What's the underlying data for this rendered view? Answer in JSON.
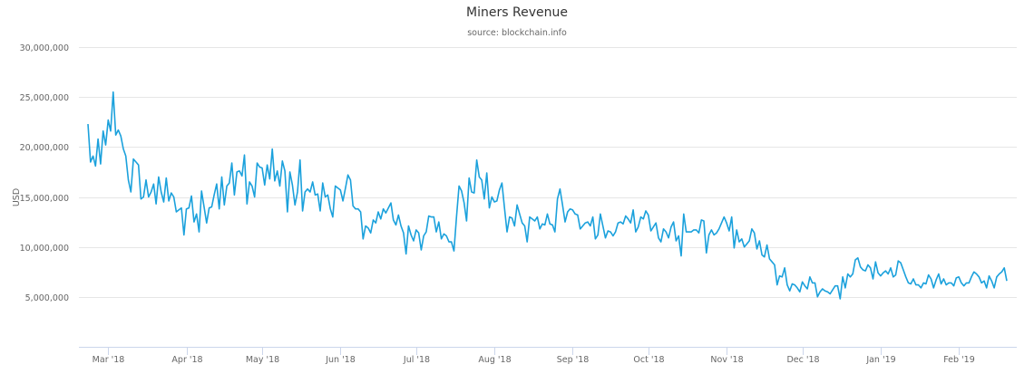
{
  "chart_data": {
    "type": "line",
    "title": "Miners Revenue",
    "subtitle": "source: blockchain.info",
    "xlabel": "",
    "ylabel": "USD",
    "ylim": [
      0,
      30000000
    ],
    "yticks": [
      5000000,
      10000000,
      15000000,
      20000000,
      25000000,
      30000000
    ],
    "ytick_labels": [
      "5,000,000",
      "10,000,000",
      "15,000,000",
      "20,000,000",
      "25,000,000",
      "30,000,000"
    ],
    "xticks": [
      {
        "date": "2018-03-01",
        "label": "Mar '18"
      },
      {
        "date": "2018-04-01",
        "label": "Apr '18"
      },
      {
        "date": "2018-05-01",
        "label": "May '18"
      },
      {
        "date": "2018-06-01",
        "label": "Jun '18"
      },
      {
        "date": "2018-07-01",
        "label": "Jul '18"
      },
      {
        "date": "2018-08-01",
        "label": "Aug '18"
      },
      {
        "date": "2018-09-01",
        "label": "Sep '18"
      },
      {
        "date": "2018-10-01",
        "label": "Oct '18"
      },
      {
        "date": "2018-11-01",
        "label": "Nov '18"
      },
      {
        "date": "2018-12-01",
        "label": "Dec '18"
      },
      {
        "date": "2019-01-01",
        "label": "Jan '19"
      },
      {
        "date": "2019-02-01",
        "label": "Feb '19"
      }
    ],
    "xlim": [
      "2018-02-21",
      "2019-02-20"
    ],
    "grid": true,
    "legend": "none",
    "line_color": "#1ba1dc",
    "grid_color": "#e6e6e6",
    "axis_color": "#ccd6eb",
    "series": [
      {
        "daily_by_month": [
          {
            "month": "2018-02",
            "first_day": 21,
            "values": [
              22300000,
              18500000,
              19100000,
              18100000,
              20800000,
              18300000,
              21600000,
              20200000
            ]
          },
          {
            "month": "2018-03",
            "first_day": 1,
            "values": [
              22700000,
              21600000,
              25500000,
              21200000,
              21700000,
              21100000,
              19800000,
              19100000,
              16700000,
              15500000,
              18800000,
              18500000,
              18200000,
              14800000,
              15000000,
              16700000,
              15000000,
              15500000,
              16300000,
              14300000,
              17000000,
              15500000,
              14500000,
              16900000,
              14600000,
              15400000,
              15000000,
              13500000,
              13700000,
              13900000,
              11200000
            ]
          },
          {
            "month": "2018-04",
            "first_day": 1,
            "values": [
              13800000,
              13900000,
              15100000,
              12500000,
              13300000,
              11500000,
              15600000,
              14000000,
              12400000,
              13900000,
              14000000,
              15200000,
              16300000,
              13800000,
              17000000,
              14200000,
              16100000,
              16400000,
              18400000,
              15200000,
              17500000,
              17600000,
              17100000,
              19200000,
              14300000,
              16500000,
              16100000,
              15000000,
              18400000,
              18000000
            ]
          },
          {
            "month": "2018-05",
            "first_day": 1,
            "values": [
              17900000,
              16200000,
              18200000,
              16800000,
              19800000,
              16600000,
              17600000,
              16100000,
              18600000,
              17600000,
              13500000,
              17500000,
              16200000,
              14200000,
              15500000,
              18700000,
              13600000,
              15500000,
              15800000,
              15500000,
              16500000,
              15200000,
              15300000,
              13600000,
              16400000,
              15000000,
              15200000,
              13800000,
              13000000,
              16100000,
              15900000
            ]
          },
          {
            "month": "2018-06",
            "first_day": 1,
            "values": [
              15700000,
              14600000,
              15900000,
              17200000,
              16700000,
              14100000,
              13800000,
              13800000,
              13500000,
              10800000,
              12100000,
              11900000,
              11400000,
              12700000,
              12400000,
              13500000,
              12800000,
              13800000,
              13400000,
              13900000,
              14400000,
              12700000,
              12200000,
              13200000,
              12100000,
              11400000,
              9300000,
              12100000,
              11200000,
              10600000
            ]
          },
          {
            "month": "2018-07",
            "first_day": 1,
            "values": [
              11700000,
              11400000,
              9700000,
              11100000,
              11500000,
              13100000,
              13000000,
              13000000,
              11500000,
              12500000,
              10800000,
              11300000,
              11100000,
              10500000,
              10500000,
              9600000,
              13000000,
              16100000,
              15600000,
              14400000,
              12600000,
              16900000,
              15500000,
              15400000,
              18700000,
              17000000,
              16700000,
              14800000,
              17400000,
              13900000,
              15000000
            ]
          },
          {
            "month": "2018-08",
            "first_day": 1,
            "values": [
              14500000,
              14600000,
              15700000,
              16400000,
              13900000,
              11500000,
              13000000,
              12900000,
              12100000,
              14200000,
              13300000,
              12400000,
              12100000,
              10500000,
              13000000,
              12800000,
              12600000,
              13000000,
              11800000,
              12300000,
              12200000,
              13300000,
              12300000,
              12200000,
              11500000,
              14800000,
              15800000,
              14200000,
              12500000,
              13500000,
              13800000
            ]
          },
          {
            "month": "2018-09",
            "first_day": 1,
            "values": [
              13700000,
              13300000,
              13200000,
              11800000,
              12100000,
              12400000,
              12500000,
              12100000,
              13000000,
              10800000,
              11200000,
              13300000,
              12100000,
              10900000,
              11600000,
              11500000,
              11100000,
              11500000,
              12400000,
              12500000,
              12300000,
              13100000,
              12800000,
              12400000,
              13700000,
              11500000,
              12000000,
              13000000,
              12800000,
              13600000
            ]
          },
          {
            "month": "2018-10",
            "first_day": 1,
            "values": [
              13200000,
              11600000,
              12000000,
              12400000,
              10900000,
              10500000,
              11800000,
              11500000,
              10900000,
              12000000,
              12500000,
              10600000,
              11100000,
              9100000,
              13300000,
              11500000,
              11500000,
              11500000,
              11700000,
              11700000,
              11400000,
              12700000,
              12600000,
              9400000,
              11200000,
              11700000,
              11200000,
              11400000,
              11800000,
              12400000,
              13000000
            ]
          },
          {
            "month": "2018-11",
            "first_day": 1,
            "values": [
              12400000,
              11600000,
              13000000,
              9900000,
              11700000,
              10500000,
              10800000,
              10000000,
              10300000,
              10600000,
              11800000,
              11400000,
              9800000,
              10600000,
              9200000,
              9000000,
              10200000,
              8800000,
              8500000,
              8200000,
              6200000,
              7100000,
              7000000,
              7900000,
              6200000,
              5600000,
              6300000,
              6200000,
              5900000,
              5500000
            ]
          },
          {
            "month": "2018-12",
            "first_day": 1,
            "values": [
              6500000,
              6100000,
              5800000,
              7000000,
              6400000,
              6400000,
              5000000,
              5500000,
              5800000,
              5600000,
              5500000,
              5300000,
              5700000,
              6100000,
              6100000,
              4800000,
              7000000,
              5900000,
              7300000,
              7000000,
              7300000,
              8700000,
              8900000,
              8000000,
              7700000,
              7600000,
              8200000,
              7900000,
              6800000,
              8500000,
              7400000
            ]
          },
          {
            "month": "2019-01",
            "first_day": 1,
            "values": [
              7100000,
              7400000,
              7600000,
              7300000,
              7900000,
              7000000,
              7200000,
              8600000,
              8400000,
              7700000,
              7000000,
              6400000,
              6300000,
              6800000,
              6200000,
              6200000,
              5900000,
              6400000,
              6300000,
              7200000,
              6800000,
              5900000,
              6700000,
              7300000,
              6300000,
              6800000,
              6200000,
              6400000,
              6400000,
              6100000,
              6900000
            ]
          },
          {
            "month": "2019-02",
            "first_day": 1,
            "values": [
              7000000,
              6400000,
              6100000,
              6400000,
              6400000,
              7000000,
              7500000,
              7300000,
              7000000,
              6400000,
              6600000,
              5900000,
              7100000,
              6600000,
              5900000,
              7000000,
              7300000,
              7500000,
              7900000,
              6600000
            ]
          }
        ]
      }
    ]
  }
}
